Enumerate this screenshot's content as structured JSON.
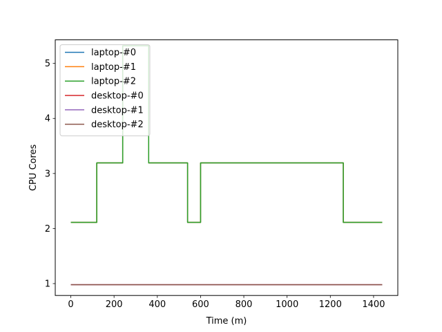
{
  "chart_data": {
    "type": "line",
    "title": "",
    "xlabel": "Time (m)",
    "ylabel": "CPU Cores",
    "xlim": [
      -72,
      1512
    ],
    "ylim": [
      0.784,
      5.428
    ],
    "xticks": [
      0,
      200,
      400,
      600,
      800,
      1000,
      1200,
      1400
    ],
    "yticks": [
      1,
      2,
      3,
      4,
      5
    ],
    "grid": false,
    "legend_position": "upper-left",
    "series": [
      {
        "name": "laptop-#0",
        "color": "#1f77b4",
        "step": "post",
        "x": [
          0,
          120,
          240,
          360,
          540,
          600,
          1260,
          1440
        ],
        "y": [
          2.112,
          3.192,
          5.32,
          3.192,
          2.112,
          3.192,
          2.112,
          2.112
        ]
      },
      {
        "name": "laptop-#1",
        "color": "#ff7f0e",
        "step": "post",
        "x": [
          0,
          120,
          240,
          360,
          540,
          600,
          1260,
          1440
        ],
        "y": [
          2.112,
          3.192,
          5.32,
          3.192,
          2.112,
          3.192,
          2.112,
          2.112
        ]
      },
      {
        "name": "laptop-#2",
        "color": "#2ca02c",
        "step": "post",
        "x": [
          0,
          120,
          240,
          360,
          540,
          600,
          1260,
          1440
        ],
        "y": [
          2.112,
          3.192,
          5.32,
          3.192,
          2.112,
          3.192,
          2.112,
          2.112
        ]
      },
      {
        "name": "desktop-#0",
        "color": "#d62728",
        "step": "post",
        "x": [
          0,
          1440
        ],
        "y": [
          0.98,
          0.98
        ]
      },
      {
        "name": "desktop-#1",
        "color": "#9467bd",
        "step": "post",
        "x": [
          0,
          1440
        ],
        "y": [
          0.98,
          0.98
        ]
      },
      {
        "name": "desktop-#2",
        "color": "#8c564b",
        "step": "post",
        "x": [
          0,
          1440
        ],
        "y": [
          0.98,
          0.98
        ]
      }
    ]
  }
}
